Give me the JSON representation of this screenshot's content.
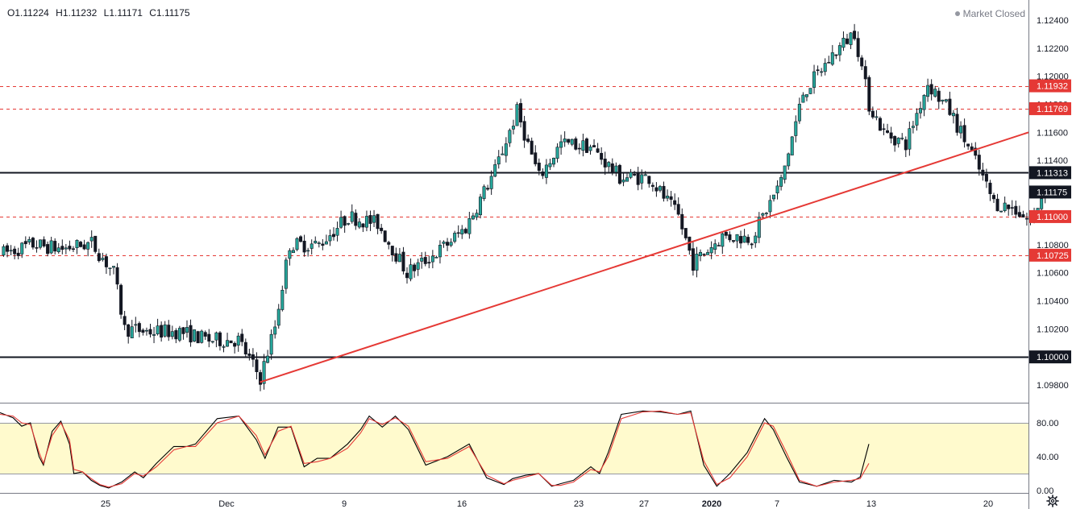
{
  "header": {
    "open": "O1.11224",
    "high": "H1.11232",
    "low": "L1.11171",
    "close": "C1.11175",
    "status": "Market Closed"
  },
  "colors": {
    "up": "#26a69a",
    "down": "#131722",
    "level_red": "#e53935",
    "trendline": "#e53935",
    "stoch_k": "#000000",
    "stoch_d": "#e53935",
    "band_fill": "#fff9c4"
  },
  "chart_data": [
    {
      "type": "candlestick",
      "title": "",
      "y_ticks": [
        "1.12400",
        "1.12200",
        "1.12000",
        "1.11800",
        "1.11600",
        "1.11400",
        "1.11200",
        "1.11000",
        "1.10800",
        "1.10600",
        "1.10400",
        "1.10200",
        "1.10000",
        "1.09800"
      ],
      "ylim": [
        1.0972,
        1.1257
      ],
      "x_ticks": [
        {
          "label": "25",
          "bold": false
        },
        {
          "label": "Dec",
          "bold": false
        },
        {
          "label": "9",
          "bold": false
        },
        {
          "label": "16",
          "bold": false
        },
        {
          "label": "23",
          "bold": false
        },
        {
          "label": "27",
          "bold": false
        },
        {
          "label": "2020",
          "bold": true
        },
        {
          "label": "7",
          "bold": false
        },
        {
          "label": "13",
          "bold": false
        },
        {
          "label": "20",
          "bold": false
        }
      ],
      "horizontal_levels": [
        {
          "value": 1.11932,
          "label": "1.11932",
          "style": "dashed",
          "color": "#e53935"
        },
        {
          "value": 1.11769,
          "label": "1.11769",
          "style": "dashed",
          "color": "#e53935"
        },
        {
          "value": 1.11313,
          "label": "1.11313",
          "style": "solid",
          "color": "#131722"
        },
        {
          "value": 1.11,
          "label": "1.11000",
          "style": "dashed",
          "color": "#e53935"
        },
        {
          "value": 1.10725,
          "label": "1.10725",
          "style": "dashed",
          "color": "#e53935"
        },
        {
          "value": 1.1,
          "label": "1.10000",
          "style": "solid",
          "color": "#131722"
        }
      ],
      "last_price": {
        "value": 1.11175,
        "label": "1.11175"
      },
      "trendline": {
        "start_index": 70,
        "start_value": 1.0982,
        "end_index": 290,
        "end_value": 1.116
      },
      "anchors": [
        [
          0,
          1.1074
        ],
        [
          8,
          1.108
        ],
        [
          16,
          1.1077
        ],
        [
          24,
          1.1081
        ],
        [
          30,
          1.106
        ],
        [
          33,
          1.102
        ],
        [
          40,
          1.1018
        ],
        [
          48,
          1.1018
        ],
        [
          56,
          1.1012
        ],
        [
          64,
          1.1012
        ],
        [
          70,
          1.0985
        ],
        [
          74,
          1.1022
        ],
        [
          78,
          1.108
        ],
        [
          86,
          1.108
        ],
        [
          94,
          1.11
        ],
        [
          102,
          1.1095
        ],
        [
          110,
          1.106
        ],
        [
          118,
          1.1074
        ],
        [
          126,
          1.1092
        ],
        [
          134,
          1.1133
        ],
        [
          140,
          1.1175
        ],
        [
          146,
          1.1128
        ],
        [
          152,
          1.1152
        ],
        [
          160,
          1.115
        ],
        [
          168,
          1.1128
        ],
        [
          176,
          1.1128
        ],
        [
          184,
          1.11
        ],
        [
          188,
          1.1067
        ],
        [
          196,
          1.1086
        ],
        [
          204,
          1.1085
        ],
        [
          212,
          1.1125
        ],
        [
          218,
          1.1188
        ],
        [
          226,
          1.1215
        ],
        [
          232,
          1.1232
        ],
        [
          236,
          1.118
        ],
        [
          240,
          1.116
        ],
        [
          246,
          1.1152
        ],
        [
          252,
          1.1195
        ],
        [
          258,
          1.1175
        ],
        [
          264,
          1.1145
        ],
        [
          270,
          1.111
        ],
        [
          276,
          1.1105
        ],
        [
          280,
          1.1096
        ],
        [
          284,
          1.112
        ]
      ],
      "bar_count": 285
    },
    {
      "type": "line",
      "title": "",
      "y_ticks": [
        "80.00",
        "40.00",
        "0.00"
      ],
      "ylim": [
        0,
        100
      ],
      "band": [
        20,
        80
      ],
      "series": [
        {
          "color": "#000000",
          "values": [
            [
              0,
              92
            ],
            [
              6,
              86
            ],
            [
              10,
              76
            ],
            [
              14,
              80
            ],
            [
              18,
              40
            ],
            [
              20,
              30
            ],
            [
              24,
              70
            ],
            [
              28,
              82
            ],
            [
              32,
              55
            ],
            [
              34,
              20
            ],
            [
              38,
              22
            ],
            [
              42,
              12
            ],
            [
              46,
              6
            ],
            [
              50,
              3
            ],
            [
              56,
              10
            ],
            [
              62,
              22
            ],
            [
              66,
              15
            ],
            [
              72,
              32
            ],
            [
              80,
              52
            ],
            [
              86,
              52
            ],
            [
              90,
              55
            ],
            [
              100,
              85
            ],
            [
              110,
              88
            ],
            [
              118,
              60
            ],
            [
              122,
              38
            ],
            [
              128,
              75
            ],
            [
              134,
              75
            ],
            [
              140,
              28
            ],
            [
              146,
              38
            ],
            [
              152,
              38
            ],
            [
              160,
              55
            ],
            [
              166,
              72
            ],
            [
              170,
              88
            ],
            [
              176,
              75
            ],
            [
              182,
              88
            ],
            [
              188,
              72
            ],
            [
              196,
              30
            ],
            [
              206,
              40
            ],
            [
              216,
              55
            ],
            [
              224,
              15
            ],
            [
              232,
              7
            ],
            [
              236,
              14
            ],
            [
              242,
              18
            ],
            [
              248,
              20
            ],
            [
              254,
              5
            ],
            [
              258,
              8
            ],
            [
              264,
              12
            ],
            [
              272,
              28
            ],
            [
              276,
              20
            ],
            [
              280,
              45
            ],
            [
              286,
              90
            ],
            [
              296,
              94
            ],
            [
              304,
              93
            ],
            [
              312,
              90
            ],
            [
              318,
              94
            ],
            [
              324,
              30
            ],
            [
              330,
              5
            ],
            [
              336,
              20
            ],
            [
              344,
              45
            ],
            [
              352,
              85
            ],
            [
              356,
              72
            ],
            [
              362,
              40
            ],
            [
              368,
              10
            ],
            [
              376,
              5
            ],
            [
              384,
              12
            ],
            [
              392,
              10
            ],
            [
              396,
              16
            ],
            [
              400,
              55
            ]
          ]
        },
        {
          "color": "#e53935",
          "values": [
            [
              0,
              90
            ],
            [
              6,
              88
            ],
            [
              10,
              80
            ],
            [
              14,
              78
            ],
            [
              18,
              45
            ],
            [
              20,
              32
            ],
            [
              24,
              65
            ],
            [
              28,
              80
            ],
            [
              32,
              60
            ],
            [
              34,
              25
            ],
            [
              38,
              22
            ],
            [
              42,
              14
            ],
            [
              46,
              7
            ],
            [
              50,
              4
            ],
            [
              56,
              8
            ],
            [
              62,
              20
            ],
            [
              66,
              17
            ],
            [
              72,
              28
            ],
            [
              80,
              48
            ],
            [
              86,
              52
            ],
            [
              90,
              52
            ],
            [
              100,
              80
            ],
            [
              110,
              88
            ],
            [
              118,
              65
            ],
            [
              122,
              42
            ],
            [
              128,
              70
            ],
            [
              134,
              76
            ],
            [
              140,
              32
            ],
            [
              146,
              34
            ],
            [
              152,
              38
            ],
            [
              160,
              50
            ],
            [
              166,
              68
            ],
            [
              170,
              85
            ],
            [
              176,
              78
            ],
            [
              182,
              86
            ],
            [
              188,
              76
            ],
            [
              196,
              34
            ],
            [
              206,
              38
            ],
            [
              216,
              52
            ],
            [
              224,
              18
            ],
            [
              232,
              8
            ],
            [
              236,
              12
            ],
            [
              242,
              16
            ],
            [
              248,
              20
            ],
            [
              254,
              6
            ],
            [
              258,
              6
            ],
            [
              264,
              10
            ],
            [
              272,
              25
            ],
            [
              276,
              22
            ],
            [
              280,
              40
            ],
            [
              286,
              85
            ],
            [
              296,
              93
            ],
            [
              304,
              94
            ],
            [
              312,
              90
            ],
            [
              318,
              92
            ],
            [
              324,
              35
            ],
            [
              330,
              7
            ],
            [
              336,
              15
            ],
            [
              344,
              40
            ],
            [
              352,
              80
            ],
            [
              356,
              76
            ],
            [
              362,
              45
            ],
            [
              368,
              12
            ],
            [
              376,
              5
            ],
            [
              384,
              10
            ],
            [
              392,
              12
            ],
            [
              396,
              14
            ],
            [
              400,
              32
            ]
          ]
        }
      ]
    }
  ],
  "settings": {
    "icon": "gear-icon"
  }
}
